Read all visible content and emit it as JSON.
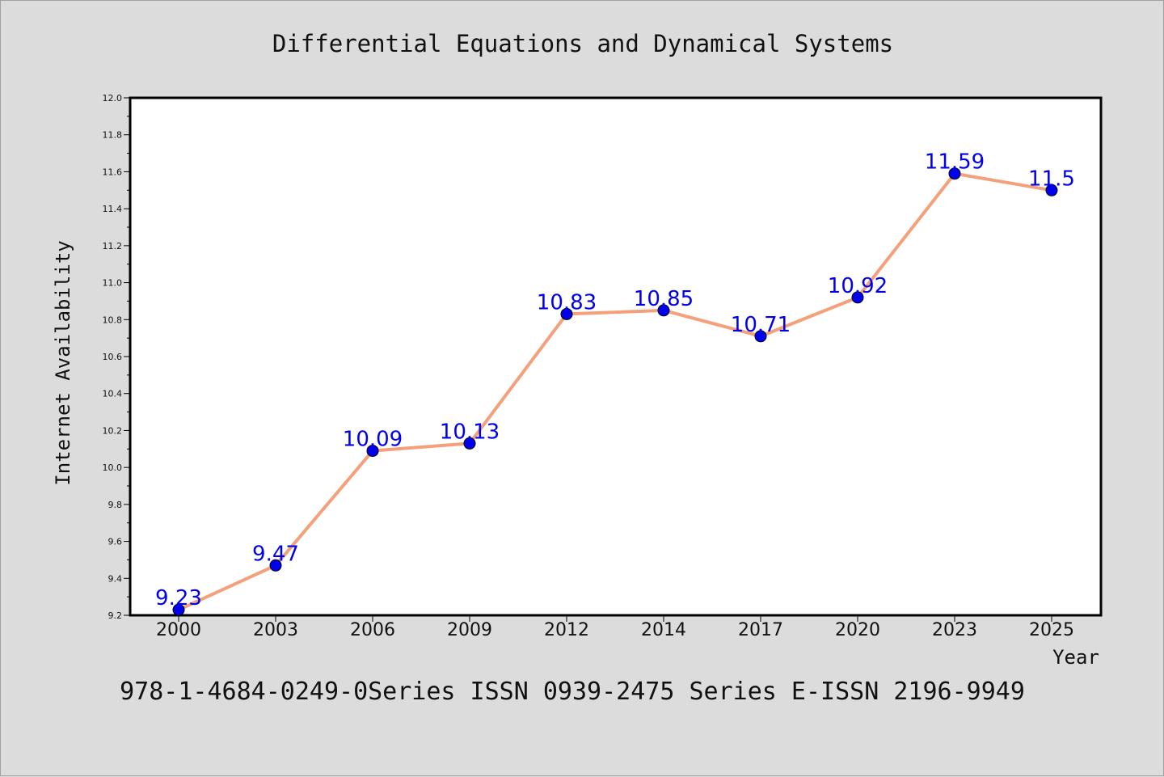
{
  "chart_data": {
    "type": "line",
    "title": "Differential Equations and Dynamical Systems",
    "xlabel": "Year",
    "ylabel": "Internet Availability",
    "categories": [
      "2000",
      "2003",
      "2006",
      "2009",
      "2012",
      "2014",
      "2017",
      "2020",
      "2023",
      "2025"
    ],
    "values": [
      9.23,
      9.47,
      10.09,
      10.13,
      10.83,
      10.85,
      10.71,
      10.92,
      11.59,
      11.5
    ],
    "data_labels": [
      "9.23",
      "9.47",
      "10.09",
      "10.13",
      "10.83",
      "10.85",
      "10.71",
      "10.92",
      "11.59",
      "11.5"
    ],
    "ylim": [
      9.2,
      12.0
    ],
    "yticks": [
      "9.2",
      "9.4",
      "9.6",
      "9.8",
      "10.0",
      "10.2",
      "10.4",
      "10.6",
      "10.8",
      "11.0",
      "11.2",
      "11.4",
      "11.6",
      "11.8",
      "12.0"
    ],
    "grid": false,
    "legend": "none",
    "line_color": "#f4a07a",
    "marker_color": "#0000ee",
    "label_color": "#0000ee"
  },
  "footer_text": "978-1-4684-0249-0Series ISSN 0939-2475 Series E-ISSN 2196-9949"
}
